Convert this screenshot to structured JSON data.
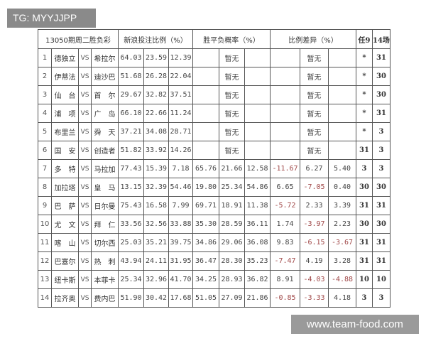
{
  "watermark_top": "TG: MYYJJPP",
  "watermark_bottom": "www.team-food.com",
  "header": {
    "issue": "13050期周二胜负彩",
    "sina_ratio": "新浪投注比例（%）",
    "odds_rate": "胜平负概率（%）",
    "ratio_diff": "比例差异（%）",
    "ren9": "任9",
    "c14": "14场"
  },
  "vs_label": "VS",
  "rows": [
    {
      "n": "1",
      "home": "德独立",
      "away": "希拉尔",
      "sina": [
        "64.03",
        "23.59",
        "12.39"
      ],
      "odds": [
        "",
        "暂无",
        ""
      ],
      "diff": [
        "",
        "暂无",
        ""
      ],
      "ren9": "*",
      "c14": "31"
    },
    {
      "n": "2",
      "home": "伊蒂法",
      "away": "迪沙巴",
      "sina": [
        "51.68",
        "26.28",
        "22.04"
      ],
      "odds": [
        "",
        "暂无",
        ""
      ],
      "diff": [
        "",
        "暂无",
        ""
      ],
      "ren9": "*",
      "c14": "30"
    },
    {
      "n": "3",
      "home": "仙　台",
      "away": "首　尔",
      "sina": [
        "29.67",
        "32.82",
        "37.51"
      ],
      "odds": [
        "",
        "暂无",
        ""
      ],
      "diff": [
        "",
        "暂无",
        ""
      ],
      "ren9": "*",
      "c14": "30"
    },
    {
      "n": "4",
      "home": "浦　项",
      "away": "广　岛",
      "sina": [
        "66.10",
        "22.66",
        "11.24"
      ],
      "odds": [
        "",
        "暂无",
        ""
      ],
      "diff": [
        "",
        "暂无",
        ""
      ],
      "ren9": "*",
      "c14": "31"
    },
    {
      "n": "5",
      "home": "布里兰",
      "away": "舜　天",
      "sina": [
        "37.21",
        "34.08",
        "28.71"
      ],
      "odds": [
        "",
        "暂无",
        ""
      ],
      "diff": [
        "",
        "暂无",
        ""
      ],
      "ren9": "*",
      "c14": "3"
    },
    {
      "n": "6",
      "home": "国　安",
      "away": "创造者",
      "sina": [
        "51.82",
        "33.92",
        "14.26"
      ],
      "odds": [
        "",
        "暂无",
        ""
      ],
      "diff": [
        "",
        "暂无",
        ""
      ],
      "ren9": "31",
      "c14": "3"
    },
    {
      "n": "7",
      "home": "多　特",
      "away": "马拉加",
      "sina": [
        "77.43",
        "15.39",
        "7.18"
      ],
      "odds": [
        "65.76",
        "21.66",
        "12.58"
      ],
      "diff": [
        "-11.67",
        "6.27",
        "5.40"
      ],
      "ren9": "3",
      "c14": "3"
    },
    {
      "n": "8",
      "home": "加拉塔",
      "away": "皇　马",
      "sina": [
        "13.15",
        "32.39",
        "54.46"
      ],
      "odds": [
        "19.80",
        "25.34",
        "54.86"
      ],
      "diff": [
        "6.65",
        "-7.05",
        "0.40"
      ],
      "ren9": "30",
      "c14": "30"
    },
    {
      "n": "9",
      "home": "巴　萨",
      "away": "日尔曼",
      "sina": [
        "75.43",
        "16.58",
        "7.99"
      ],
      "odds": [
        "69.71",
        "18.91",
        "11.38"
      ],
      "diff": [
        "-5.72",
        "2.33",
        "3.39"
      ],
      "ren9": "31",
      "c14": "31"
    },
    {
      "n": "10",
      "home": "尤　文",
      "away": "拜　仁",
      "sina": [
        "33.56",
        "32.56",
        "33.88"
      ],
      "odds": [
        "35.30",
        "28.59",
        "36.11"
      ],
      "diff": [
        "1.74",
        "-3.97",
        "2.23"
      ],
      "ren9": "30",
      "c14": "30"
    },
    {
      "n": "11",
      "home": "喀　山",
      "away": "切尔西",
      "sina": [
        "25.03",
        "35.21",
        "39.75"
      ],
      "odds": [
        "34.86",
        "29.06",
        "36.08"
      ],
      "diff": [
        "9.83",
        "-6.15",
        "-3.67"
      ],
      "ren9": "31",
      "c14": "31"
    },
    {
      "n": "12",
      "home": "巴塞尔",
      "away": "热　刺",
      "sina": [
        "43.94",
        "24.11",
        "31.95"
      ],
      "odds": [
        "36.47",
        "28.30",
        "35.23"
      ],
      "diff": [
        "-7.47",
        "4.19",
        "3.28"
      ],
      "ren9": "31",
      "c14": "31"
    },
    {
      "n": "13",
      "home": "纽卡斯",
      "away": "本菲卡",
      "sina": [
        "25.34",
        "32.96",
        "41.70"
      ],
      "odds": [
        "34.25",
        "28.93",
        "36.82"
      ],
      "diff": [
        "8.91",
        "-4.03",
        "-4.88"
      ],
      "ren9": "10",
      "c14": "10"
    },
    {
      "n": "14",
      "home": "拉齐奥",
      "away": "费内巴",
      "sina": [
        "51.90",
        "30.42",
        "17.68"
      ],
      "odds": [
        "51.05",
        "27.09",
        "21.86"
      ],
      "diff": [
        "-0.85",
        "-3.33",
        "4.18"
      ],
      "ren9": "3",
      "c14": "3"
    }
  ],
  "colors": {
    "negative": "#a04848",
    "grid": "#555555"
  }
}
